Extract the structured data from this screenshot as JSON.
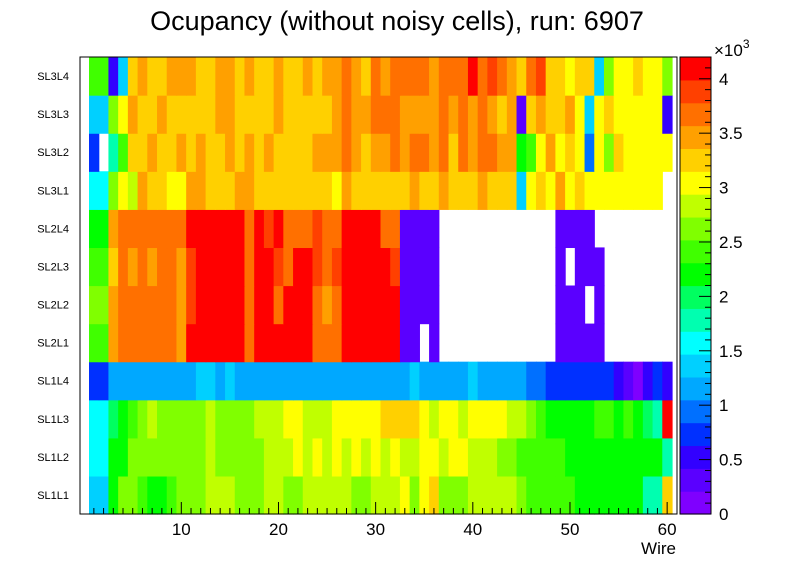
{
  "chart_data": {
    "type": "heatmap",
    "title": "Ocupancy (without noisy cells), run: 6907",
    "xlabel": "Wire",
    "ylabel": "",
    "xlim": [
      0,
      60
    ],
    "x_ticks": [
      10,
      20,
      30,
      40,
      50,
      60
    ],
    "rows": [
      "SL1L1",
      "SL1L2",
      "SL1L3",
      "SL1L4",
      "SL2L1",
      "SL2L2",
      "SL2L3",
      "SL2L4",
      "SL3L1",
      "SL3L2",
      "SL3L3",
      "SL3L4"
    ],
    "colorbar": {
      "min": 0,
      "max": 4200,
      "exponent_label": "×10³",
      "exponent_base": "×10",
      "exponent_power": "3",
      "ticks": [
        {
          "value": 0,
          "label": "0"
        },
        {
          "value": 500,
          "label": "0.5"
        },
        {
          "value": 1000,
          "label": "1"
        },
        {
          "value": 1500,
          "label": "1.5"
        },
        {
          "value": 2000,
          "label": "2"
        },
        {
          "value": 2500,
          "label": "2.5"
        },
        {
          "value": 3000,
          "label": "3"
        },
        {
          "value": 3500,
          "label": "3.5"
        },
        {
          "value": 4000,
          "label": "4"
        }
      ],
      "palette": [
        "#7f00ff",
        "#5a00ff",
        "#3200ff",
        "#0030ff",
        "#0070ff",
        "#00a8ff",
        "#00d0ff",
        "#00ffff",
        "#00ffb0",
        "#00ff60",
        "#00ff00",
        "#40ff00",
        "#80ff00",
        "#c0ff00",
        "#ffff00",
        "#ffd000",
        "#ffa000",
        "#ff7000",
        "#ff4000",
        "#ff0000"
      ]
    },
    "values": {
      "SL1L1": [
        1300,
        1300,
        2300,
        2600,
        2600,
        2500,
        2300,
        2300,
        2500,
        2600,
        2600,
        2600,
        2800,
        2800,
        2800,
        2600,
        2600,
        2600,
        2900,
        2800,
        2600,
        2600,
        2800,
        2800,
        2800,
        2800,
        2900,
        2700,
        2700,
        2800,
        2900,
        2800,
        3000,
        2600,
        3000,
        3200,
        2600,
        2600,
        2700,
        2800,
        2800,
        2800,
        2800,
        2800,
        2700,
        2500,
        2500,
        2500,
        2400,
        2400,
        2200,
        2200,
        2200,
        2200,
        2200,
        2300,
        2300,
        1700,
        1800,
        3300
      ],
      "SL1L2": [
        1600,
        1600,
        2200,
        2100,
        2600,
        2600,
        2700,
        2600,
        2600,
        2600,
        2600,
        2700,
        2900,
        2700,
        2600,
        2700,
        2600,
        2700,
        2900,
        2900,
        2900,
        3000,
        2800,
        3000,
        2900,
        3000,
        2800,
        3000,
        2900,
        3000,
        2800,
        3100,
        2900,
        2800,
        3000,
        3000,
        2900,
        3100,
        3000,
        2800,
        2800,
        2800,
        2600,
        2600,
        2500,
        2500,
        2400,
        2400,
        2400,
        2200,
        2300,
        2300,
        2200,
        2200,
        2300,
        2100,
        2300,
        2300,
        2300,
        1800
      ],
      "SL1L3": [
        1500,
        1500,
        2000,
        2300,
        2500,
        2600,
        2800,
        2700,
        2600,
        2600,
        2600,
        2600,
        2800,
        2700,
        2600,
        2700,
        2700,
        2800,
        2900,
        2900,
        3000,
        3000,
        2900,
        2900,
        2900,
        3100,
        3000,
        3000,
        3000,
        3000,
        3300,
        3300,
        3300,
        3200,
        3100,
        2900,
        3000,
        3000,
        2900,
        3000,
        3100,
        3000,
        3100,
        2900,
        2900,
        2700,
        2500,
        2200,
        2200,
        2200,
        2300,
        2200,
        2400,
        2400,
        2300,
        2400,
        2100,
        1900,
        1700,
        4200
      ],
      "SL1L4": [
        800,
        800,
        1100,
        1100,
        1100,
        1200,
        1200,
        1200,
        1100,
        1100,
        1200,
        1300,
        1300,
        1200,
        1300,
        1200,
        1200,
        1200,
        1200,
        1200,
        1200,
        1100,
        1100,
        1100,
        1200,
        1200,
        1200,
        1200,
        1200,
        1200,
        1200,
        1200,
        1200,
        1300,
        1200,
        1200,
        1200,
        1200,
        1200,
        1300,
        1100,
        1100,
        1100,
        1100,
        1100,
        900,
        1000,
        700,
        700,
        700,
        700,
        700,
        700,
        700,
        500,
        300,
        200,
        500,
        700,
        600
      ],
      "SL2L1": [
        2400,
        2400,
        3400,
        3600,
        3600,
        3600,
        3600,
        3600,
        3600,
        3500,
        4000,
        4000,
        4000,
        4000,
        4000,
        4000,
        3700,
        4200,
        4200,
        4000,
        4000,
        4000,
        4000,
        3700,
        3700,
        3700,
        4100,
        4100,
        4100,
        4100,
        4100,
        4100,
        300,
        300,
        null,
        300,
        null,
        null,
        null,
        null,
        null,
        null,
        null,
        null,
        null,
        null,
        null,
        null,
        300,
        300,
        300,
        300,
        300,
        null,
        null,
        null,
        null,
        null,
        null,
        null
      ],
      "SL2L2": [
        2600,
        2600,
        3400,
        3600,
        3600,
        3600,
        3600,
        3600,
        3600,
        3500,
        3800,
        4000,
        4000,
        4000,
        4000,
        4000,
        3700,
        4100,
        4100,
        3700,
        4000,
        4000,
        4000,
        3700,
        3500,
        3700,
        4100,
        4100,
        4100,
        4100,
        4100,
        4100,
        300,
        300,
        300,
        300,
        null,
        null,
        null,
        null,
        null,
        null,
        null,
        null,
        null,
        null,
        null,
        null,
        300,
        300,
        300,
        null,
        300,
        null,
        null,
        null,
        null,
        null,
        null,
        null
      ],
      "SL2L3": [
        2500,
        2500,
        3300,
        3600,
        3500,
        3600,
        3400,
        3600,
        3600,
        3500,
        3800,
        4000,
        4000,
        4000,
        4000,
        4000,
        3700,
        4100,
        4200,
        3800,
        3700,
        4000,
        4000,
        3800,
        3700,
        3800,
        4000,
        4100,
        4100,
        4100,
        4100,
        3900,
        300,
        300,
        300,
        300,
        null,
        null,
        null,
        null,
        null,
        null,
        null,
        null,
        null,
        null,
        null,
        null,
        300,
        null,
        300,
        300,
        300,
        null,
        null,
        null,
        null,
        null,
        null,
        null
      ],
      "SL2L4": [
        2300,
        2300,
        3400,
        3600,
        3600,
        3600,
        3600,
        3600,
        3600,
        3600,
        4000,
        4000,
        4000,
        4000,
        4000,
        4000,
        3700,
        4100,
        3900,
        4100,
        3700,
        3700,
        3700,
        3800,
        3700,
        3700,
        4100,
        4100,
        4100,
        4100,
        3700,
        3700,
        300,
        300,
        300,
        300,
        null,
        null,
        null,
        null,
        null,
        null,
        null,
        null,
        null,
        null,
        null,
        null,
        300,
        300,
        300,
        300,
        null,
        null,
        null,
        null,
        null,
        null,
        null,
        null
      ],
      "SL3L1": [
        1600,
        1600,
        2700,
        3000,
        2900,
        3400,
        3200,
        3300,
        3100,
        3000,
        3500,
        3400,
        3300,
        3200,
        3300,
        3400,
        3500,
        3200,
        3300,
        3200,
        3300,
        3300,
        3200,
        3300,
        3300,
        3100,
        3400,
        3300,
        3300,
        3300,
        3200,
        3300,
        3300,
        3400,
        3300,
        3300,
        3400,
        3200,
        3300,
        3300,
        3400,
        3200,
        3300,
        3200,
        1400,
        3000,
        3200,
        3100,
        3400,
        3000,
        3300,
        3000,
        3100,
        3100,
        3100,
        3000,
        3100,
        3000,
        3000,
        null
      ],
      "SL3L2": [
        700,
        null,
        1700,
        2500,
        3300,
        3300,
        3500,
        3200,
        3300,
        3500,
        3300,
        3500,
        3300,
        3200,
        3500,
        3300,
        3400,
        3200,
        3400,
        3200,
        3300,
        3200,
        3300,
        3500,
        3400,
        3500,
        3700,
        3400,
        3300,
        3500,
        3500,
        3600,
        3500,
        3600,
        3600,
        3500,
        3700,
        3200,
        3700,
        3400,
        3700,
        3600,
        3500,
        3400,
        2100,
        2500,
        3000,
        3400,
        3000,
        3200,
        3000,
        1000,
        3100,
        2700,
        3200,
        3100,
        3100,
        3000,
        3000,
        3000
      ],
      "SL3L3": [
        1400,
        1400,
        2700,
        3100,
        3400,
        3300,
        3200,
        3500,
        3300,
        3300,
        3300,
        3300,
        3300,
        3400,
        3400,
        3300,
        3300,
        3200,
        3300,
        3400,
        3300,
        3300,
        3300,
        3300,
        3300,
        3500,
        3600,
        3500,
        3400,
        3600,
        3600,
        3600,
        3400,
        3500,
        3400,
        3500,
        3600,
        3500,
        3600,
        3400,
        3700,
        3400,
        3300,
        3400,
        300,
        3200,
        3500,
        3200,
        3300,
        3400,
        3000,
        1400,
        3100,
        3200,
        3100,
        3100,
        3100,
        3000,
        3000,
        500
      ],
      "SL3L4": [
        2400,
        2400,
        500,
        1400,
        3200,
        3400,
        3300,
        3300,
        3500,
        3400,
        3500,
        3300,
        3300,
        3400,
        3500,
        3300,
        3400,
        3200,
        3300,
        3400,
        3300,
        3300,
        3400,
        3300,
        3400,
        3400,
        3700,
        3500,
        3300,
        3700,
        3500,
        3700,
        3700,
        3600,
        3700,
        3400,
        3600,
        3700,
        3700,
        4000,
        3700,
        3900,
        3700,
        3500,
        3300,
        3700,
        3900,
        3300,
        3200,
        3100,
        3200,
        3200,
        1400,
        2600,
        3100,
        3100,
        3200,
        3100,
        3100,
        2600
      ]
    }
  }
}
